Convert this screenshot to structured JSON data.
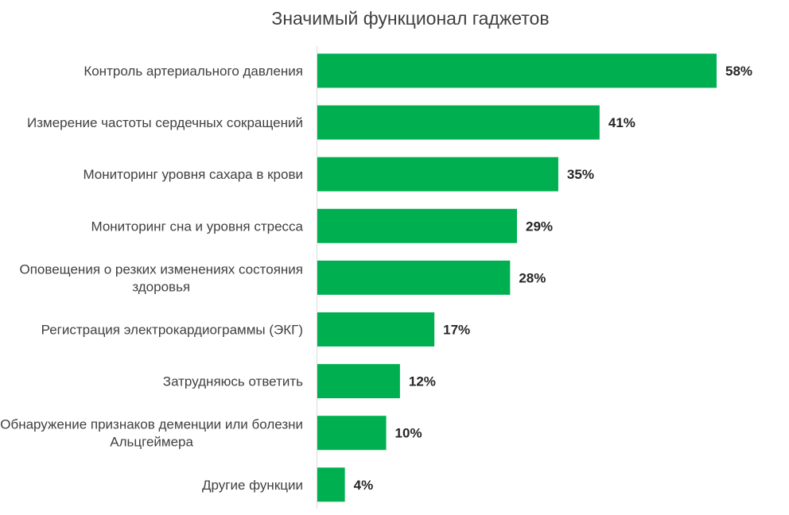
{
  "chart_data": {
    "type": "bar",
    "orientation": "horizontal",
    "title": "Значимый функционал гаджетов",
    "xlabel": "",
    "ylabel": "",
    "xlim": [
      0,
      65
    ],
    "grid": false,
    "legend": "none",
    "bar_color": "#00B050",
    "categories": [
      "Контроль артериального давления",
      "Измерение частоты сердечных сокращений",
      "Мониторинг уровня сахара в крови",
      "Мониторинг сна и уровня стресса",
      "Оповещения о резких изменениях состояния здоровья",
      "Регистрация электрокардиограммы (ЭКГ)",
      "Затрудняюсь ответить",
      "Обнаружение признаков деменции или болезни Альцгеймера",
      "Другие функции"
    ],
    "category_lines": [
      [
        "Контроль артериального давления"
      ],
      [
        "Измерение частоты сердечных сокращений"
      ],
      [
        "Мониторинг уровня сахара в крови"
      ],
      [
        "Мониторинг сна и уровня стресса"
      ],
      [
        "Оповещения о резких изменениях состояния",
        "здоровья"
      ],
      [
        "Регистрация электрокардиограммы (ЭКГ)"
      ],
      [
        "Затрудняюсь ответить"
      ],
      [
        "Обнаружение признаков деменции или болезни",
        "Альцгеймера"
      ],
      [
        "Другие функции"
      ]
    ],
    "values": [
      58,
      41,
      35,
      29,
      28,
      17,
      12,
      10,
      4
    ],
    "value_labels": [
      "58%",
      "41%",
      "35%",
      "29%",
      "28%",
      "17%",
      "12%",
      "10%",
      "4%"
    ]
  }
}
